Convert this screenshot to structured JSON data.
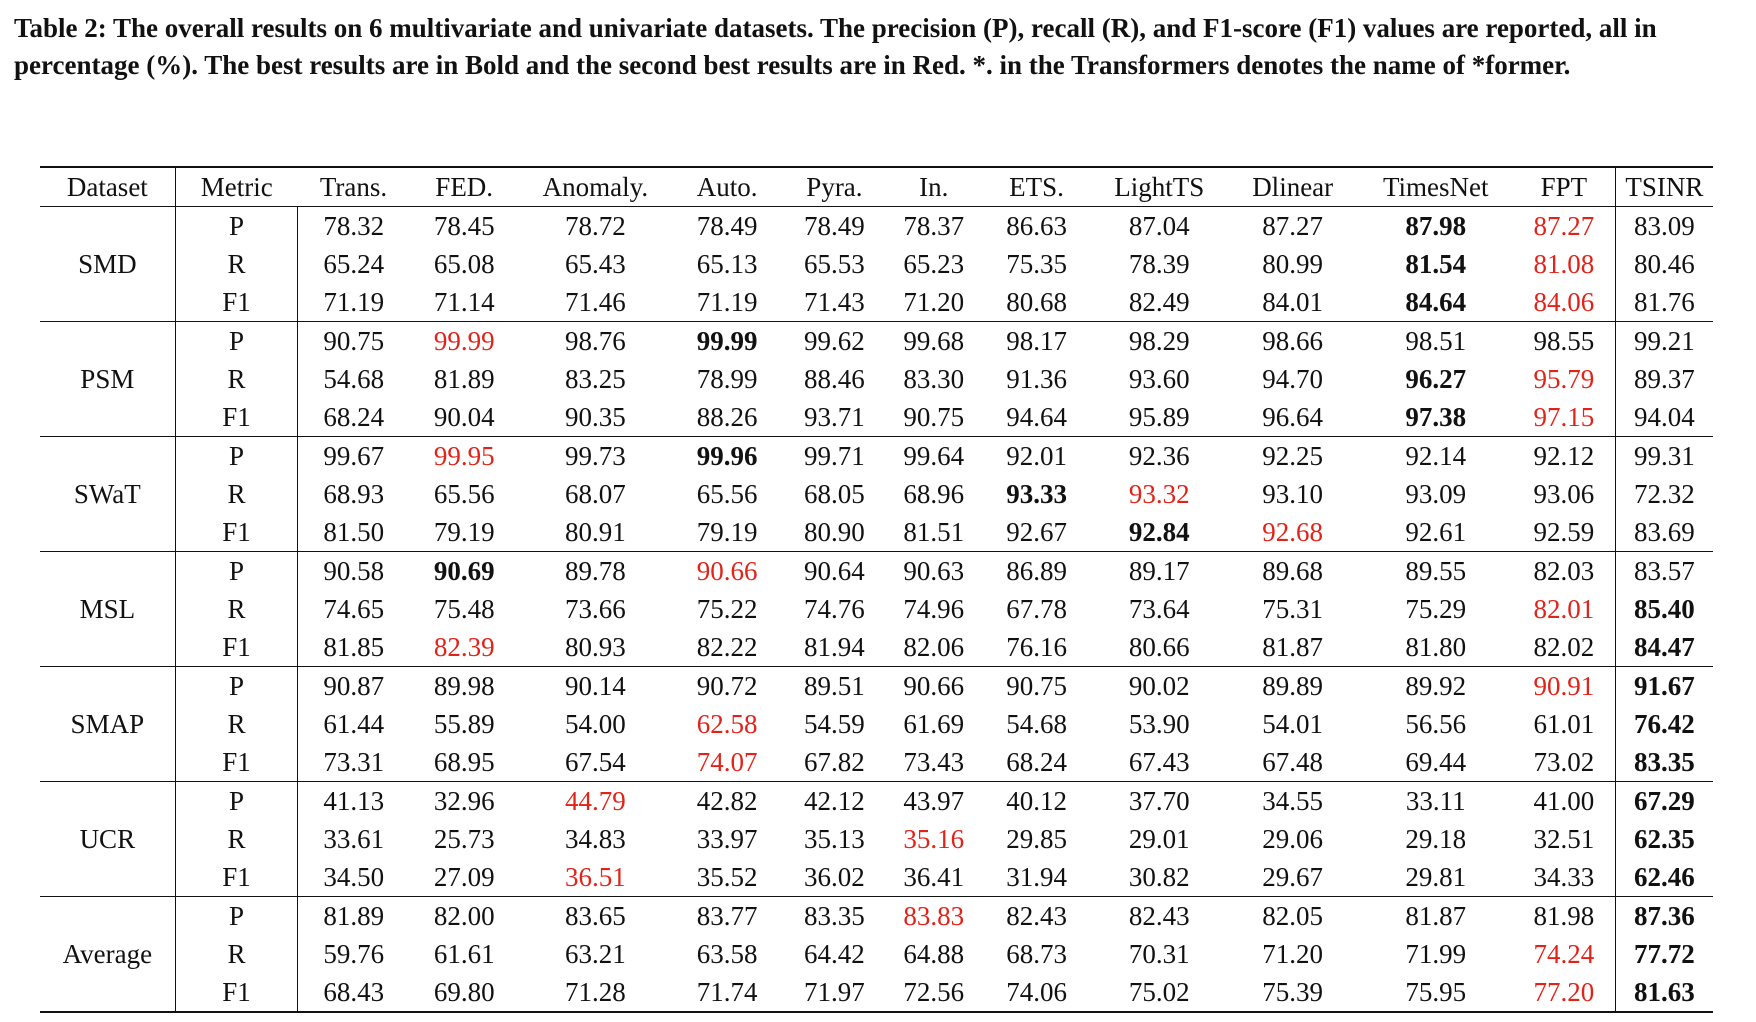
{
  "caption": "Table 2: The overall results on 6 multivariate and univariate datasets. The precision (P), recall (R), and F1-score (F1) values are reported, all in percentage (%). The best results are in Bold and the second best results are in Red. *. in the Transformers denotes the name of *former.",
  "table": {
    "headers": [
      "Dataset",
      "Metric",
      "Trans.",
      "FED.",
      "Anomaly.",
      "Auto.",
      "Pyra.",
      "In.",
      "ETS.",
      "LightTS",
      "Dlinear",
      "TimesNet",
      "FPT",
      "TSINR"
    ],
    "groups": [
      {
        "dataset": "SMD",
        "rows": [
          {
            "metric": "P",
            "values": [
              "78.32",
              "78.45",
              "78.72",
              "78.49",
              "78.49",
              "78.37",
              "86.63",
              "87.04",
              "87.27",
              "87.98",
              "87.27",
              "83.09"
            ],
            "best": 9,
            "second": 10
          },
          {
            "metric": "R",
            "values": [
              "65.24",
              "65.08",
              "65.43",
              "65.13",
              "65.53",
              "65.23",
              "75.35",
              "78.39",
              "80.99",
              "81.54",
              "81.08",
              "80.46"
            ],
            "best": 9,
            "second": 10
          },
          {
            "metric": "F1",
            "values": [
              "71.19",
              "71.14",
              "71.46",
              "71.19",
              "71.43",
              "71.20",
              "80.68",
              "82.49",
              "84.01",
              "84.64",
              "84.06",
              "81.76"
            ],
            "best": 9,
            "second": 10
          }
        ]
      },
      {
        "dataset": "PSM",
        "rows": [
          {
            "metric": "P",
            "values": [
              "90.75",
              "99.99",
              "98.76",
              "99.99",
              "99.62",
              "99.68",
              "98.17",
              "98.29",
              "98.66",
              "98.51",
              "98.55",
              "99.21"
            ],
            "best": 3,
            "second": 1
          },
          {
            "metric": "R",
            "values": [
              "54.68",
              "81.89",
              "83.25",
              "78.99",
              "88.46",
              "83.30",
              "91.36",
              "93.60",
              "94.70",
              "96.27",
              "95.79",
              "89.37"
            ],
            "best": 9,
            "second": 10
          },
          {
            "metric": "F1",
            "values": [
              "68.24",
              "90.04",
              "90.35",
              "88.26",
              "93.71",
              "90.75",
              "94.64",
              "95.89",
              "96.64",
              "97.38",
              "97.15",
              "94.04"
            ],
            "best": 9,
            "second": 10
          }
        ]
      },
      {
        "dataset": "SWaT",
        "rows": [
          {
            "metric": "P",
            "values": [
              "99.67",
              "99.95",
              "99.73",
              "99.96",
              "99.71",
              "99.64",
              "92.01",
              "92.36",
              "92.25",
              "92.14",
              "92.12",
              "99.31"
            ],
            "best": 3,
            "second": 1
          },
          {
            "metric": "R",
            "values": [
              "68.93",
              "65.56",
              "68.07",
              "65.56",
              "68.05",
              "68.96",
              "93.33",
              "93.32",
              "93.10",
              "93.09",
              "93.06",
              "72.32"
            ],
            "best": 6,
            "second": 7
          },
          {
            "metric": "F1",
            "values": [
              "81.50",
              "79.19",
              "80.91",
              "79.19",
              "80.90",
              "81.51",
              "92.67",
              "92.84",
              "92.68",
              "92.61",
              "92.59",
              "83.69"
            ],
            "best": 7,
            "second": 8
          }
        ]
      },
      {
        "dataset": "MSL",
        "rows": [
          {
            "metric": "P",
            "values": [
              "90.58",
              "90.69",
              "89.78",
              "90.66",
              "90.64",
              "90.63",
              "86.89",
              "89.17",
              "89.68",
              "89.55",
              "82.03",
              "83.57"
            ],
            "best": 1,
            "second": 3
          },
          {
            "metric": "R",
            "values": [
              "74.65",
              "75.48",
              "73.66",
              "75.22",
              "74.76",
              "74.96",
              "67.78",
              "73.64",
              "75.31",
              "75.29",
              "82.01",
              "85.40"
            ],
            "best": 11,
            "second": 10
          },
          {
            "metric": "F1",
            "values": [
              "81.85",
              "82.39",
              "80.93",
              "82.22",
              "81.94",
              "82.06",
              "76.16",
              "80.66",
              "81.87",
              "81.80",
              "82.02",
              "84.47"
            ],
            "best": 11,
            "second": 1
          }
        ]
      },
      {
        "dataset": "SMAP",
        "rows": [
          {
            "metric": "P",
            "values": [
              "90.87",
              "89.98",
              "90.14",
              "90.72",
              "89.51",
              "90.66",
              "90.75",
              "90.02",
              "89.89",
              "89.92",
              "90.91",
              "91.67"
            ],
            "best": 11,
            "second": 10
          },
          {
            "metric": "R",
            "values": [
              "61.44",
              "55.89",
              "54.00",
              "62.58",
              "54.59",
              "61.69",
              "54.68",
              "53.90",
              "54.01",
              "56.56",
              "61.01",
              "76.42"
            ],
            "best": 11,
            "second": 3
          },
          {
            "metric": "F1",
            "values": [
              "73.31",
              "68.95",
              "67.54",
              "74.07",
              "67.82",
              "73.43",
              "68.24",
              "67.43",
              "67.48",
              "69.44",
              "73.02",
              "83.35"
            ],
            "best": 11,
            "second": 3
          }
        ]
      },
      {
        "dataset": "UCR",
        "rows": [
          {
            "metric": "P",
            "values": [
              "41.13",
              "32.96",
              "44.79",
              "42.82",
              "42.12",
              "43.97",
              "40.12",
              "37.70",
              "34.55",
              "33.11",
              "41.00",
              "67.29"
            ],
            "best": 11,
            "second": 2
          },
          {
            "metric": "R",
            "values": [
              "33.61",
              "25.73",
              "34.83",
              "33.97",
              "35.13",
              "35.16",
              "29.85",
              "29.01",
              "29.06",
              "29.18",
              "32.51",
              "62.35"
            ],
            "best": 11,
            "second": 5
          },
          {
            "metric": "F1",
            "values": [
              "34.50",
              "27.09",
              "36.51",
              "35.52",
              "36.02",
              "36.41",
              "31.94",
              "30.82",
              "29.67",
              "29.81",
              "34.33",
              "62.46"
            ],
            "best": 11,
            "second": 2
          }
        ]
      },
      {
        "dataset": "Average",
        "rows": [
          {
            "metric": "P",
            "values": [
              "81.89",
              "82.00",
              "83.65",
              "83.77",
              "83.35",
              "83.83",
              "82.43",
              "82.43",
              "82.05",
              "81.87",
              "81.98",
              "87.36"
            ],
            "best": 11,
            "second": 5
          },
          {
            "metric": "R",
            "values": [
              "59.76",
              "61.61",
              "63.21",
              "63.58",
              "64.42",
              "64.88",
              "68.73",
              "70.31",
              "71.20",
              "71.99",
              "74.24",
              "77.72"
            ],
            "best": 11,
            "second": 10
          },
          {
            "metric": "F1",
            "values": [
              "68.43",
              "69.80",
              "71.28",
              "71.74",
              "71.97",
              "72.56",
              "74.06",
              "75.02",
              "75.39",
              "75.95",
              "77.20",
              "81.63"
            ],
            "best": 11,
            "second": 10
          }
        ]
      }
    ]
  }
}
